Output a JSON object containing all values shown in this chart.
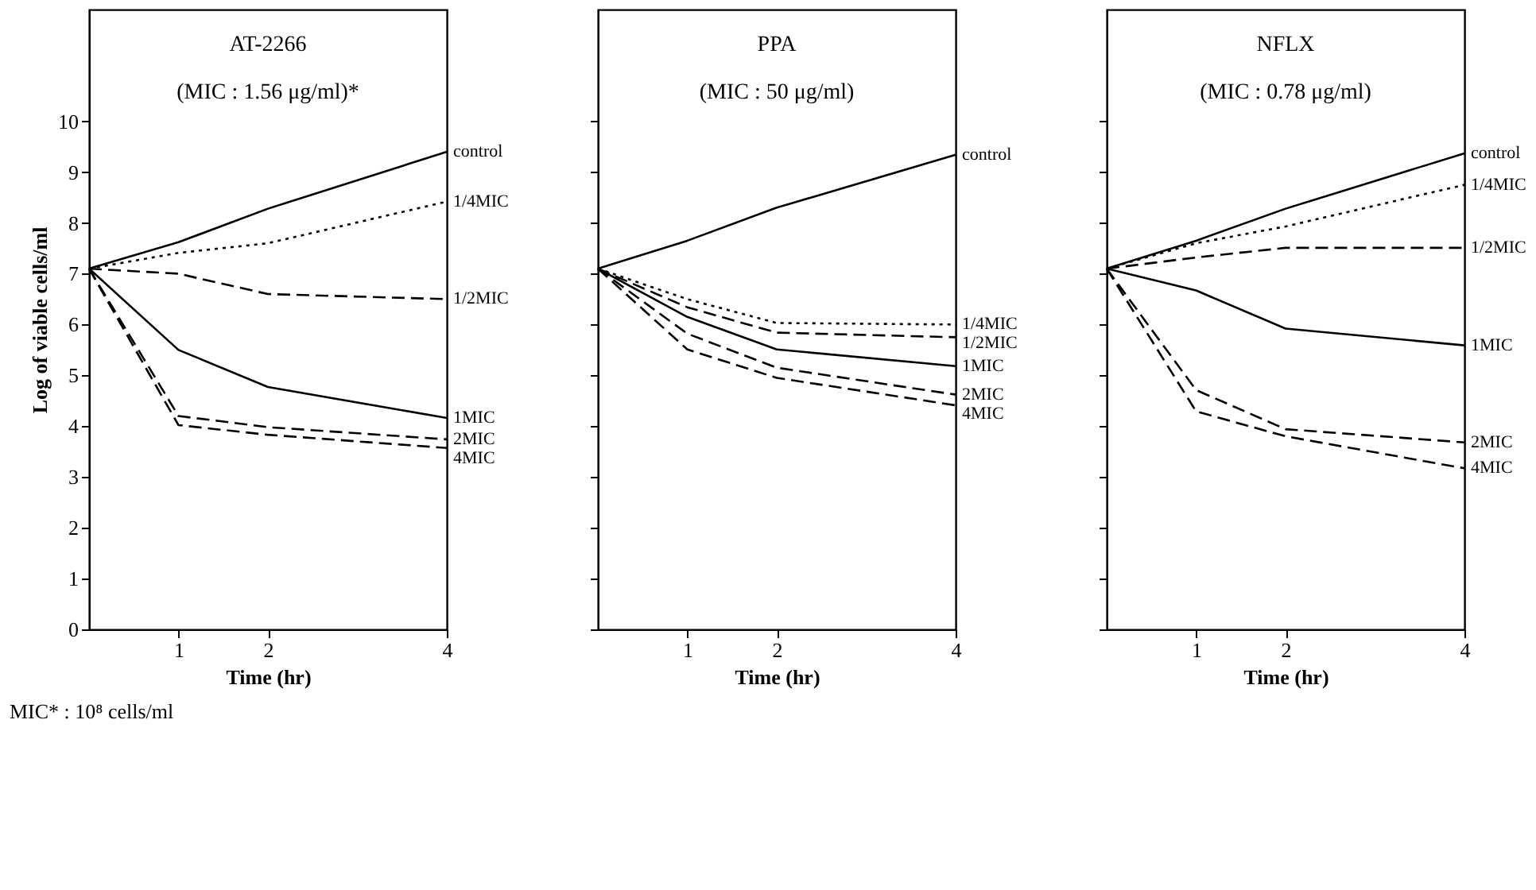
{
  "chart_data": [
    {
      "type": "line",
      "title": "AT-2266",
      "subtitle": "(MIC : 1.56 μg/ml)*",
      "xlabel": "Time (hr)",
      "ylabel": "Log of viable cells/ml",
      "x": [
        0,
        1,
        2,
        4
      ],
      "xlim": [
        0,
        4
      ],
      "xticks": [
        1,
        2,
        4
      ],
      "ylim": [
        0,
        12.2
      ],
      "yticks": [
        0,
        1,
        2,
        3,
        4,
        5,
        6,
        7,
        8,
        9,
        10
      ],
      "grid": false,
      "legend": false,
      "annotations": [
        "MIC* : 10⁸ cells/ml"
      ],
      "series": [
        {
          "name": "control",
          "color": "#000000",
          "line_style": "solid",
          "values": [
            7.1,
            7.62,
            8.28,
            9.4
          ]
        },
        {
          "name": "1/4MIC",
          "color": "#000000",
          "line_style": "dotted",
          "values": [
            7.1,
            7.41,
            7.6,
            8.42
          ]
        },
        {
          "name": "1/2MIC",
          "color": "#000000",
          "line_style": "dashed",
          "values": [
            7.1,
            7.0,
            6.6,
            6.5
          ]
        },
        {
          "name": "1MIC",
          "color": "#000000",
          "line_style": "solid",
          "values": [
            7.1,
            5.5,
            4.77,
            4.16
          ]
        },
        {
          "name": "2MIC",
          "color": "#000000",
          "line_style": "dashed",
          "values": [
            7.1,
            4.2,
            3.98,
            3.74
          ]
        },
        {
          "name": "4MIC",
          "color": "#000000",
          "line_style": "dashed",
          "values": [
            7.1,
            4.02,
            3.83,
            3.57
          ]
        }
      ]
    },
    {
      "type": "line",
      "title": "PPA",
      "subtitle": "(MIC : 50 μg/ml)",
      "xlabel": "Time (hr)",
      "x": [
        0,
        1,
        2,
        4
      ],
      "xlim": [
        0,
        4
      ],
      "xticks": [
        1,
        2,
        4
      ],
      "ylim": [
        0,
        12.2
      ],
      "yticks": [
        0,
        1,
        2,
        3,
        4,
        5,
        6,
        7,
        8,
        9,
        10
      ],
      "grid": false,
      "legend": false,
      "tick_labels": "x",
      "series": [
        {
          "name": "control",
          "color": "#000000",
          "line_style": "solid",
          "values": [
            7.1,
            7.65,
            8.3,
            9.34
          ]
        },
        {
          "name": "1/4MIC",
          "color": "#000000",
          "line_style": "dotted",
          "values": [
            7.1,
            6.5,
            6.03,
            6.0
          ]
        },
        {
          "name": "1/2MIC",
          "color": "#000000",
          "line_style": "dashed",
          "values": [
            7.1,
            6.34,
            5.84,
            5.75
          ]
        },
        {
          "name": "1MIC",
          "color": "#000000",
          "line_style": "solid",
          "values": [
            7.1,
            6.15,
            5.51,
            5.18
          ]
        },
        {
          "name": "2MIC",
          "color": "#000000",
          "line_style": "dashed",
          "values": [
            7.1,
            5.82,
            5.15,
            4.62
          ]
        },
        {
          "name": "4MIC",
          "color": "#000000",
          "line_style": "dashed",
          "values": [
            7.1,
            5.51,
            4.95,
            4.41
          ]
        }
      ]
    },
    {
      "type": "line",
      "title": "NFLX",
      "subtitle": "(MIC : 0.78 μg/ml)",
      "xlabel": "Time (hr)",
      "x": [
        0,
        1,
        2,
        4
      ],
      "xlim": [
        0,
        4
      ],
      "xticks": [
        1,
        2,
        4
      ],
      "ylim": [
        0,
        12.2
      ],
      "yticks": [
        0,
        1,
        2,
        3,
        4,
        5,
        6,
        7,
        8,
        9,
        10
      ],
      "grid": false,
      "legend": false,
      "tick_labels": "x",
      "series": [
        {
          "name": "control",
          "color": "#000000",
          "line_style": "solid",
          "values": [
            7.1,
            7.65,
            8.28,
            9.37
          ]
        },
        {
          "name": "1/4MIC",
          "color": "#000000",
          "line_style": "dotted",
          "values": [
            7.1,
            7.6,
            7.93,
            8.75
          ]
        },
        {
          "name": "1/2MIC",
          "color": "#000000",
          "line_style": "dashed",
          "values": [
            7.1,
            7.32,
            7.51,
            7.51
          ]
        },
        {
          "name": "1MIC",
          "color": "#000000",
          "line_style": "solid",
          "values": [
            7.1,
            6.67,
            5.92,
            5.59
          ]
        },
        {
          "name": "2MIC",
          "color": "#000000",
          "line_style": "dashed",
          "values": [
            7.1,
            4.71,
            3.94,
            3.68
          ]
        },
        {
          "name": "4MIC",
          "color": "#000000",
          "line_style": "dashed",
          "values": [
            7.1,
            4.29,
            3.8,
            3.17
          ]
        }
      ]
    }
  ]
}
